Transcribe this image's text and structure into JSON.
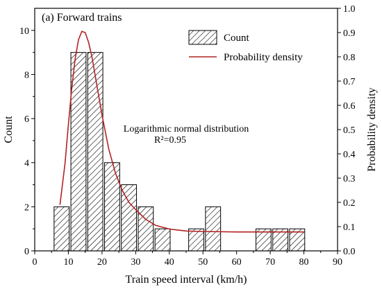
{
  "chart_data": {
    "type": "bar",
    "title": "(a) Forward trains",
    "xlabel": "Train speed interval (km/h)",
    "ylabel": "Count",
    "y2label": "Probability density",
    "xlim": [
      0,
      90
    ],
    "ylim": [
      0,
      11
    ],
    "y2lim": [
      0,
      1.0
    ],
    "x_ticks": [
      "0",
      "10",
      "20",
      "30",
      "40",
      "50",
      "60",
      "70",
      "80",
      "90"
    ],
    "y_ticks": [
      "0",
      "2",
      "4",
      "6",
      "8",
      "10"
    ],
    "y2_ticks": [
      "0.0",
      "0.1",
      "0.2",
      "0.3",
      "0.4",
      "0.5",
      "0.6",
      "0.7",
      "0.8",
      "0.9",
      "1.0"
    ],
    "bin_width": 4.5,
    "bars": [
      {
        "center": 8,
        "count": 2
      },
      {
        "center": 13,
        "count": 9
      },
      {
        "center": 18,
        "count": 9
      },
      {
        "center": 23,
        "count": 4
      },
      {
        "center": 28,
        "count": 3
      },
      {
        "center": 33,
        "count": 2
      },
      {
        "center": 38,
        "count": 1
      },
      {
        "center": 48,
        "count": 1
      },
      {
        "center": 53,
        "count": 2
      },
      {
        "center": 68,
        "count": 1
      },
      {
        "center": 73,
        "count": 1
      },
      {
        "center": 78,
        "count": 1
      }
    ],
    "density_curve": {
      "x": [
        7.5,
        9,
        10,
        11,
        12,
        13,
        14,
        15,
        16,
        17,
        18,
        19,
        20,
        22,
        24,
        26,
        28,
        30,
        33,
        36,
        40,
        45,
        50,
        60,
        70,
        80
      ],
      "y": [
        0.19,
        0.36,
        0.52,
        0.67,
        0.79,
        0.87,
        0.905,
        0.9,
        0.86,
        0.8,
        0.72,
        0.64,
        0.56,
        0.42,
        0.32,
        0.25,
        0.2,
        0.17,
        0.13,
        0.105,
        0.09,
        0.082,
        0.08,
        0.078,
        0.078,
        0.078
      ]
    },
    "legend": {
      "entries": [
        "Count",
        "Probability density"
      ],
      "placement": "top-right"
    },
    "annotation": {
      "line1": "Logarithmic normal distribution",
      "line2": "R²=0.95"
    },
    "colors": {
      "bar_fill_hatch": "#000000",
      "curve": "#b22222",
      "axis": "#000000"
    }
  }
}
